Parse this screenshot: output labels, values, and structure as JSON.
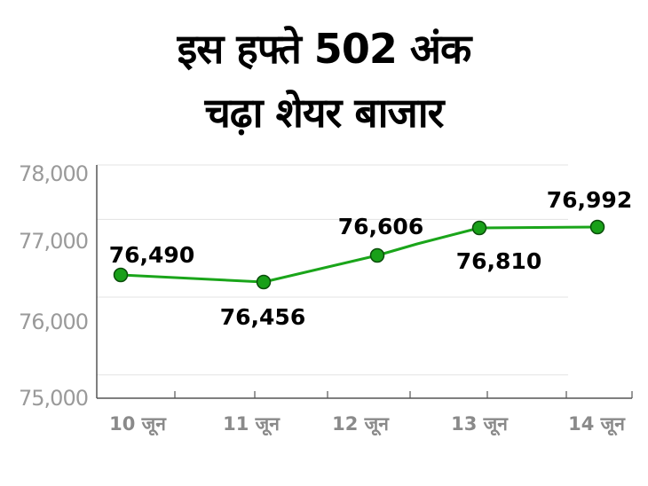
{
  "title_line1": "इस हफ्ते 502 अंक",
  "title_line2": "चढ़ा शेयर बाजार",
  "chart_data": {
    "type": "line",
    "categories": [
      "10 जून",
      "11 जून",
      "12 जून",
      "13 जून",
      "14 जून"
    ],
    "values": [
      76490,
      76456,
      76606,
      76810,
      76992
    ],
    "value_labels": [
      "76,490",
      "76,456",
      "76,606",
      "76,810",
      "76,992"
    ],
    "yticks": [
      75000,
      76000,
      77000,
      78000
    ],
    "ytick_labels": [
      "75,000",
      "76,000",
      "77,000",
      "78,000"
    ],
    "ylim": [
      75000,
      78000
    ],
    "grid": true,
    "colors": {
      "line": "#1aa51a",
      "marker_fill": "#19a019",
      "marker_edge": "#0b4d0b",
      "axis": "#555555",
      "grid": "#e3e3e3"
    }
  }
}
